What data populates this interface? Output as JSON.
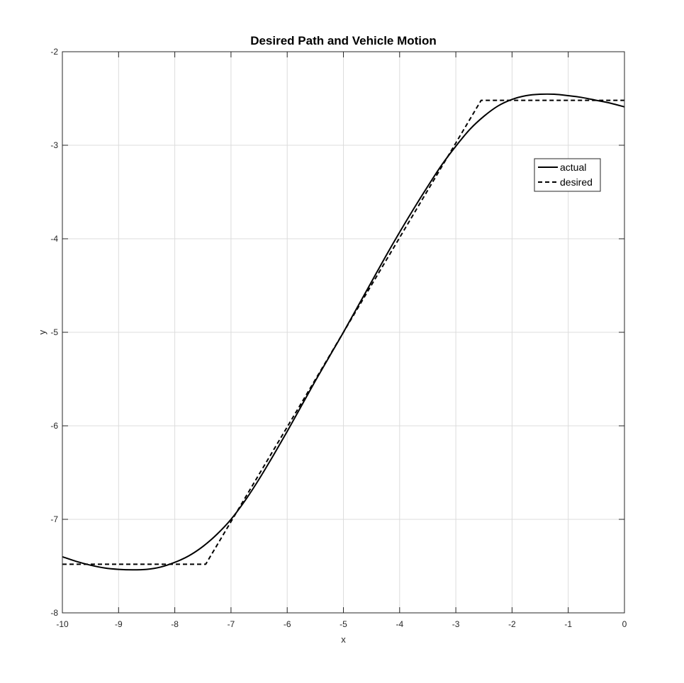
{
  "chart_data": {
    "type": "line",
    "title": "Desired Path and Vehicle Motion",
    "xlabel": "x",
    "ylabel": "y",
    "xlim": [
      -10,
      0
    ],
    "ylim": [
      -8,
      -2
    ],
    "xticks": [
      -10,
      -9,
      -8,
      -7,
      -6,
      -5,
      -4,
      -3,
      -2,
      -1,
      0
    ],
    "yticks": [
      -8,
      -7,
      -6,
      -5,
      -4,
      -3,
      -2
    ],
    "xtick_labels": [
      "-10",
      "-9",
      "-8",
      "-7",
      "-6",
      "-5",
      "-4",
      "-3",
      "-2",
      "-1",
      "0"
    ],
    "ytick_labels": [
      "-8",
      "-7",
      "-6",
      "-5",
      "-4",
      "-3",
      "-2"
    ],
    "grid": true,
    "legend_position": "top-right",
    "series": [
      {
        "name": "actual",
        "style": "solid",
        "color": "#000000",
        "points": [
          [
            -10.0,
            -7.4
          ],
          [
            -9.75,
            -7.45
          ],
          [
            -9.5,
            -7.49
          ],
          [
            -9.25,
            -7.52
          ],
          [
            -9.0,
            -7.535
          ],
          [
            -8.75,
            -7.54
          ],
          [
            -8.5,
            -7.535
          ],
          [
            -8.25,
            -7.51
          ],
          [
            -8.0,
            -7.46
          ],
          [
            -7.75,
            -7.39
          ],
          [
            -7.5,
            -7.29
          ],
          [
            -7.25,
            -7.16
          ],
          [
            -7.0,
            -7.0
          ],
          [
            -6.75,
            -6.8
          ],
          [
            -6.5,
            -6.57
          ],
          [
            -6.25,
            -6.32
          ],
          [
            -6.0,
            -6.06
          ],
          [
            -5.75,
            -5.79
          ],
          [
            -5.5,
            -5.52
          ],
          [
            -5.25,
            -5.26
          ],
          [
            -5.0,
            -5.0
          ],
          [
            -4.75,
            -4.73
          ],
          [
            -4.5,
            -4.46
          ],
          [
            -4.25,
            -4.19
          ],
          [
            -4.0,
            -3.93
          ],
          [
            -3.75,
            -3.68
          ],
          [
            -3.5,
            -3.44
          ],
          [
            -3.25,
            -3.21
          ],
          [
            -3.0,
            -3.01
          ],
          [
            -2.75,
            -2.83
          ],
          [
            -2.5,
            -2.69
          ],
          [
            -2.25,
            -2.58
          ],
          [
            -2.0,
            -2.51
          ],
          [
            -1.75,
            -2.47
          ],
          [
            -1.5,
            -2.455
          ],
          [
            -1.25,
            -2.455
          ],
          [
            -1.0,
            -2.47
          ],
          [
            -0.75,
            -2.49
          ],
          [
            -0.5,
            -2.52
          ],
          [
            -0.25,
            -2.55
          ],
          [
            0.0,
            -2.59
          ]
        ]
      },
      {
        "name": "desired",
        "style": "dashed",
        "color": "#000000",
        "points": [
          [
            -10.0,
            -7.48
          ],
          [
            -7.45,
            -7.48
          ],
          [
            -2.55,
            -2.52
          ],
          [
            0.0,
            -2.52
          ]
        ]
      }
    ]
  }
}
